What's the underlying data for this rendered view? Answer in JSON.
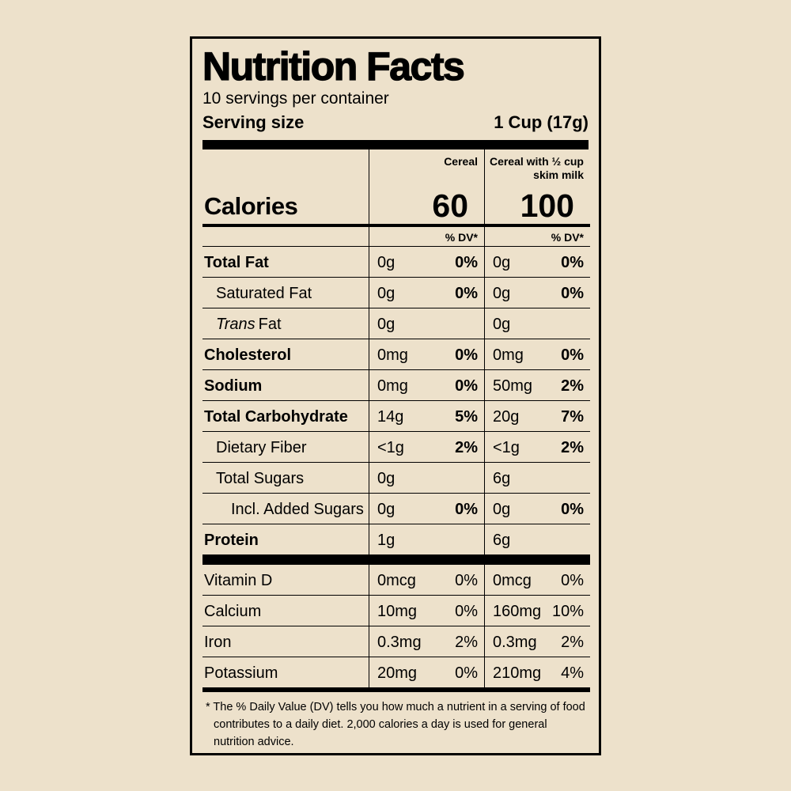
{
  "colors": {
    "background": "#ede1cb",
    "ink": "#000000"
  },
  "label": {
    "title": "Nutrition Facts",
    "servings": "10 servings per container",
    "serving_size": {
      "label": "Serving size",
      "value": "1 Cup (17g)"
    },
    "column_headers": {
      "cereal": "Cereal",
      "cereal_milk": "Cereal with ½ cup skim milk"
    },
    "calories": {
      "label": "Calories",
      "cereal": "60",
      "cereal_milk": "100"
    },
    "dv_header": "% DV*",
    "nutrients": [
      {
        "name": "Total Fat",
        "cereal": {
          "amount": "0g",
          "dv": "0%"
        },
        "milk": {
          "amount": "0g",
          "dv": "0%"
        }
      },
      {
        "name": "Saturated Fat",
        "cereal": {
          "amount": "0g",
          "dv": "0%"
        },
        "milk": {
          "amount": "0g",
          "dv": "0%"
        }
      },
      {
        "name_italic": "Trans",
        "name": "Fat",
        "cereal": {
          "amount": "0g"
        },
        "milk": {
          "amount": "0g"
        }
      },
      {
        "name": "Cholesterol",
        "cereal": {
          "amount": "0mg",
          "dv": "0%"
        },
        "milk": {
          "amount": "0mg",
          "dv": "0%"
        }
      },
      {
        "name": "Sodium",
        "cereal": {
          "amount": "0mg",
          "dv": "0%"
        },
        "milk": {
          "amount": "50mg",
          "dv": "2%"
        }
      },
      {
        "name": "Total Carbohydrate",
        "cereal": {
          "amount": "14g",
          "dv": "5%"
        },
        "milk": {
          "amount": "20g",
          "dv": "7%"
        }
      },
      {
        "name": "Dietary Fiber",
        "cereal": {
          "amount": "<1g",
          "dv": "2%"
        },
        "milk": {
          "amount": "<1g",
          "dv": "2%"
        }
      },
      {
        "name": "Total Sugars",
        "cereal": {
          "amount": "0g"
        },
        "milk": {
          "amount": "6g"
        }
      },
      {
        "name": "Incl. Added Sugars",
        "cereal": {
          "amount": "0g",
          "dv": "0%"
        },
        "milk": {
          "amount": "0g",
          "dv": "0%"
        }
      },
      {
        "name": "Protein",
        "cereal": {
          "amount": "1g"
        },
        "milk": {
          "amount": "6g"
        }
      }
    ],
    "vitamins": [
      {
        "name": "Vitamin D",
        "cereal": {
          "amount": "0mcg",
          "dv": "0%"
        },
        "milk": {
          "amount": "0mcg",
          "dv": "0%"
        }
      },
      {
        "name": "Calcium",
        "cereal": {
          "amount": "10mg",
          "dv": "0%"
        },
        "milk": {
          "amount": "160mg",
          "dv": "10%"
        }
      },
      {
        "name": "Iron",
        "cereal": {
          "amount": "0.3mg",
          "dv": "2%"
        },
        "milk": {
          "amount": "0.3mg",
          "dv": "2%"
        }
      },
      {
        "name": "Potassium",
        "cereal": {
          "amount": "20mg",
          "dv": "0%"
        },
        "milk": {
          "amount": "210mg",
          "dv": "4%"
        }
      }
    ],
    "footnote": "* The % Daily Value (DV) tells you how much a nutrient in a serving of food contributes to a daily diet. 2,000 calories a day is used for general nutrition advice."
  }
}
